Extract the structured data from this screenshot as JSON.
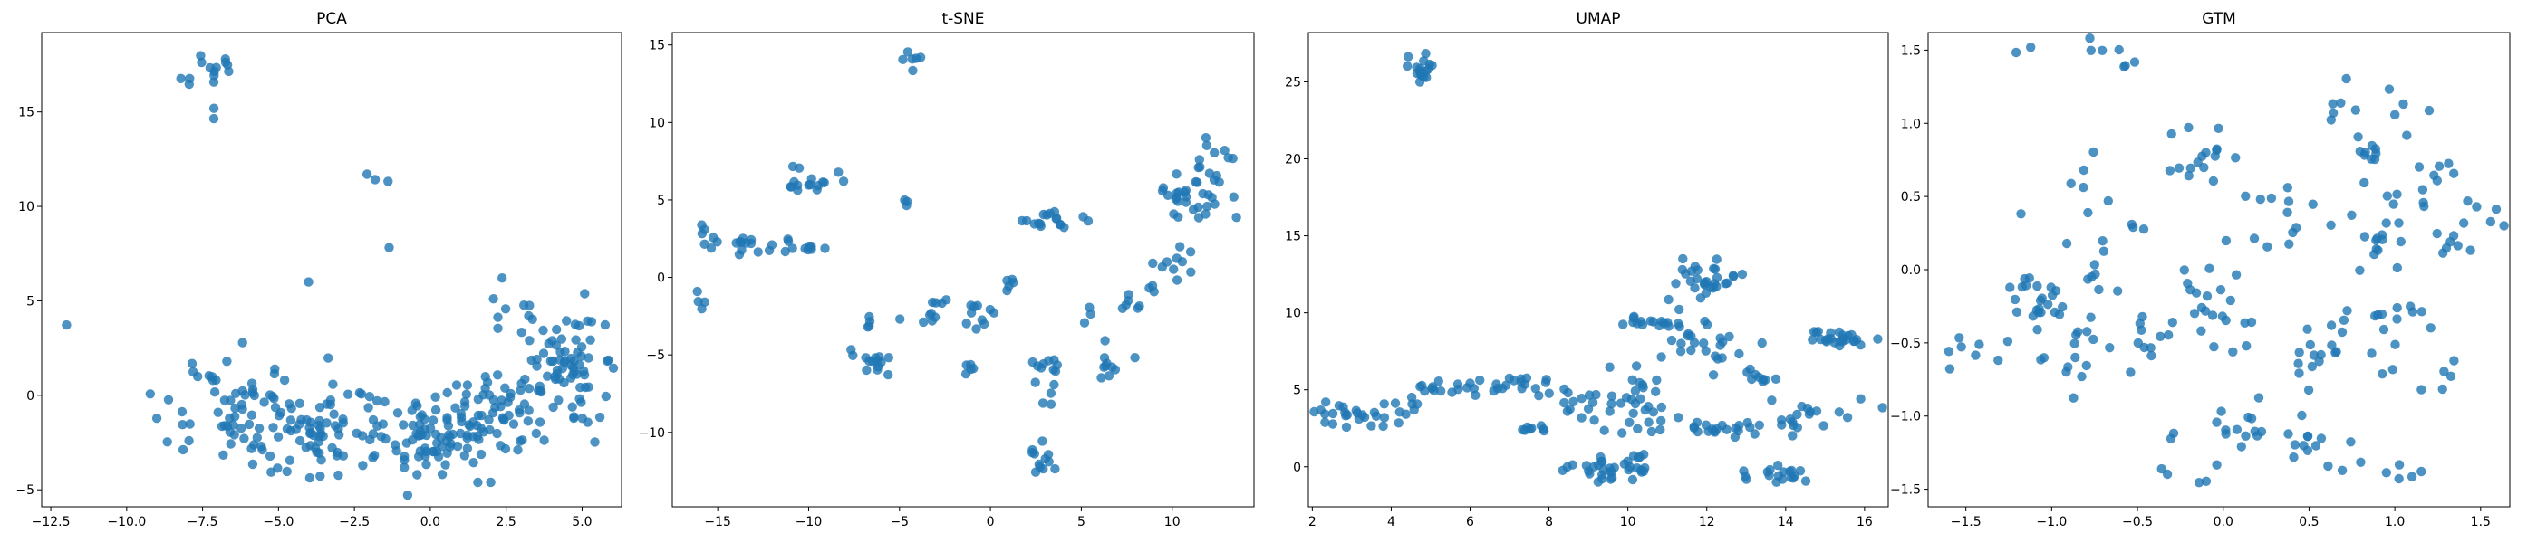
{
  "figure": {
    "point_color": "#1f77b4",
    "point_alpha": 0.8
  },
  "chart_data": [
    {
      "type": "scatter",
      "title": "PCA",
      "xlabel": "",
      "ylabel": "",
      "xlim": [
        -12.8,
        6.3
      ],
      "ylim": [
        -5.9,
        19.2
      ],
      "xticks": [
        -12.5,
        -10.0,
        -7.5,
        -5.0,
        -2.5,
        0.0,
        2.5,
        5.0
      ],
      "xtick_labels": [
        "−12.5",
        "−10.0",
        "−7.5",
        "−5.0",
        "−2.5",
        "0.0",
        "2.5",
        "5.0"
      ],
      "yticks": [
        -5,
        0,
        5,
        10,
        15
      ],
      "ytick_labels": [
        "−5",
        "0",
        "5",
        "10",
        "15"
      ],
      "clusters": [
        {
          "center": [
            -7.4,
            17.2
          ],
          "spread": [
            0.6,
            0.6
          ],
          "n": 14,
          "seed": 11
        },
        {
          "center": [
            -6.9,
            14.8
          ],
          "spread": [
            0.2,
            0.2
          ],
          "n": 2,
          "seed": 12
        },
        {
          "center": [
            -11.9,
            3.7
          ],
          "spread": [
            0.05,
            0.05
          ],
          "n": 1,
          "seed": 13
        },
        {
          "center": [
            -1.6,
            11.6
          ],
          "spread": [
            0.3,
            0.2
          ],
          "n": 3,
          "seed": 14
        },
        {
          "center": [
            -1.3,
            7.8
          ],
          "spread": [
            0.05,
            0.05
          ],
          "n": 1,
          "seed": 15
        },
        {
          "center": [
            -4.0,
            6.0
          ],
          "spread": [
            0.05,
            0.05
          ],
          "n": 1,
          "seed": 16
        },
        {
          "center": [
            -6.5,
            -1.2
          ],
          "spread": [
            1.2,
            1.5
          ],
          "n": 60,
          "seed": 17
        },
        {
          "center": [
            -4.5,
            -2.0
          ],
          "spread": [
            1.0,
            1.2
          ],
          "n": 40,
          "seed": 18
        },
        {
          "center": [
            -2.0,
            -1.6
          ],
          "spread": [
            1.3,
            1.1
          ],
          "n": 50,
          "seed": 19
        },
        {
          "center": [
            0.3,
            -2.4
          ],
          "spread": [
            0.8,
            1.2
          ],
          "n": 60,
          "seed": 20
        },
        {
          "center": [
            2.2,
            -1.2
          ],
          "spread": [
            1.0,
            1.0
          ],
          "n": 50,
          "seed": 21
        },
        {
          "center": [
            4.3,
            1.6
          ],
          "spread": [
            0.7,
            1.5
          ],
          "n": 80,
          "seed": 22
        },
        {
          "center": [
            3.0,
            4.6
          ],
          "spread": [
            0.7,
            1.0
          ],
          "n": 8,
          "seed": 23
        }
      ]
    },
    {
      "type": "scatter",
      "title": "t-SNE",
      "xlabel": "",
      "ylabel": "",
      "xlim": [
        -17.5,
        14.5
      ],
      "ylim": [
        -14.8,
        15.8
      ],
      "xticks": [
        -15,
        -10,
        -5,
        0,
        5,
        10
      ],
      "xtick_labels": [
        "−15",
        "−10",
        "−5",
        "0",
        "5",
        "10"
      ],
      "yticks": [
        -10,
        -5,
        0,
        5,
        10,
        15
      ],
      "ytick_labels": [
        "−10",
        "−5",
        "0",
        "5",
        "10",
        "15"
      ],
      "clusters": [
        {
          "center": [
            -4.4,
            13.9
          ],
          "spread": [
            0.4,
            0.3
          ],
          "n": 6,
          "seed": 31
        },
        {
          "center": [
            -15.8,
            3.0
          ],
          "spread": [
            0.1,
            0.2
          ],
          "n": 3,
          "seed": 32
        },
        {
          "center": [
            -13.5,
            2.0
          ],
          "spread": [
            1.2,
            0.3
          ],
          "n": 18,
          "seed": 33
        },
        {
          "center": [
            -10.0,
            6.2
          ],
          "spread": [
            0.8,
            0.5
          ],
          "n": 16,
          "seed": 34
        },
        {
          "center": [
            -10.0,
            2.0
          ],
          "spread": [
            0.7,
            0.5
          ],
          "n": 8,
          "seed": 35
        },
        {
          "center": [
            -15.8,
            -1.4
          ],
          "spread": [
            0.2,
            0.4
          ],
          "n": 4,
          "seed": 36
        },
        {
          "center": [
            -4.5,
            4.8
          ],
          "spread": [
            0.2,
            0.1
          ],
          "n": 3,
          "seed": 37
        },
        {
          "center": [
            -6.7,
            -5.5
          ],
          "spread": [
            0.6,
            0.6
          ],
          "n": 14,
          "seed": 38
        },
        {
          "center": [
            -6.8,
            -2.8
          ],
          "spread": [
            0.2,
            0.3
          ],
          "n": 4,
          "seed": 39
        },
        {
          "center": [
            -3.5,
            -2.5
          ],
          "spread": [
            0.6,
            0.8
          ],
          "n": 10,
          "seed": 40
        },
        {
          "center": [
            -0.8,
            -2.4
          ],
          "spread": [
            0.6,
            0.6
          ],
          "n": 10,
          "seed": 41
        },
        {
          "center": [
            -1.5,
            -6.0
          ],
          "spread": [
            0.3,
            0.4
          ],
          "n": 5,
          "seed": 42
        },
        {
          "center": [
            0.8,
            -0.5
          ],
          "spread": [
            0.3,
            0.6
          ],
          "n": 5,
          "seed": 43
        },
        {
          "center": [
            2.8,
            -12.0
          ],
          "spread": [
            0.6,
            0.6
          ],
          "n": 12,
          "seed": 44
        },
        {
          "center": [
            3.0,
            -6.2
          ],
          "spread": [
            0.5,
            1.2
          ],
          "n": 14,
          "seed": 45
        },
        {
          "center": [
            3.6,
            3.8
          ],
          "spread": [
            0.6,
            0.3
          ],
          "n": 14,
          "seed": 46
        },
        {
          "center": [
            5.5,
            -2.3
          ],
          "spread": [
            0.2,
            0.2
          ],
          "n": 3,
          "seed": 47
        },
        {
          "center": [
            6.8,
            -5.3
          ],
          "spread": [
            0.5,
            0.6
          ],
          "n": 10,
          "seed": 48
        },
        {
          "center": [
            8.3,
            -1.0
          ],
          "spread": [
            0.7,
            0.7
          ],
          "n": 10,
          "seed": 49
        },
        {
          "center": [
            10.5,
            5.0
          ],
          "spread": [
            0.8,
            1.4
          ],
          "n": 20,
          "seed": 50
        },
        {
          "center": [
            12.3,
            6.5
          ],
          "spread": [
            0.8,
            1.8
          ],
          "n": 22,
          "seed": 51
        },
        {
          "center": [
            10.2,
            1.0
          ],
          "spread": [
            0.5,
            0.6
          ],
          "n": 8,
          "seed": 52
        },
        {
          "center": [
            2.0,
            3.6
          ],
          "spread": [
            0.3,
            0.1
          ],
          "n": 3,
          "seed": 53
        }
      ]
    },
    {
      "type": "scatter",
      "title": "UMAP",
      "xlabel": "",
      "ylabel": "",
      "xlim": [
        1.9,
        16.6
      ],
      "ylim": [
        -2.6,
        28.2
      ],
      "xticks": [
        2,
        4,
        6,
        8,
        10,
        12,
        14,
        16
      ],
      "xtick_labels": [
        "2",
        "4",
        "6",
        "8",
        "10",
        "12",
        "14",
        "16"
      ],
      "yticks": [
        0,
        5,
        10,
        15,
        20,
        25
      ],
      "ytick_labels": [
        "0",
        "5",
        "10",
        "15",
        "20",
        "25"
      ],
      "clusters": [
        {
          "center": [
            4.7,
            25.9
          ],
          "spread": [
            0.2,
            0.5
          ],
          "n": 18,
          "seed": 61
        },
        {
          "center": [
            3.3,
            3.5
          ],
          "spread": [
            0.6,
            0.4
          ],
          "n": 30,
          "seed": 62
        },
        {
          "center": [
            4.6,
            4.8
          ],
          "spread": [
            0.4,
            0.4
          ],
          "n": 8,
          "seed": 63
        },
        {
          "center": [
            6.8,
            5.3
          ],
          "spread": [
            0.8,
            0.4
          ],
          "n": 25,
          "seed": 64
        },
        {
          "center": [
            7.5,
            2.4
          ],
          "spread": [
            0.4,
            0.2
          ],
          "n": 8,
          "seed": 65
        },
        {
          "center": [
            9.4,
            -0.3
          ],
          "spread": [
            0.6,
            0.4
          ],
          "n": 25,
          "seed": 66
        },
        {
          "center": [
            10.3,
            0.2
          ],
          "spread": [
            0.3,
            0.3
          ],
          "n": 10,
          "seed": 67
        },
        {
          "center": [
            9.6,
            4.0
          ],
          "spread": [
            0.5,
            0.8
          ],
          "n": 20,
          "seed": 68
        },
        {
          "center": [
            10.6,
            4.0
          ],
          "spread": [
            0.4,
            1.2
          ],
          "n": 20,
          "seed": 69
        },
        {
          "center": [
            10.7,
            9.4
          ],
          "spread": [
            0.5,
            0.3
          ],
          "n": 18,
          "seed": 70
        },
        {
          "center": [
            12.1,
            12.1
          ],
          "spread": [
            0.5,
            0.6
          ],
          "n": 30,
          "seed": 71
        },
        {
          "center": [
            11.8,
            7.8
          ],
          "spread": [
            0.7,
            0.6
          ],
          "n": 20,
          "seed": 72
        },
        {
          "center": [
            12.3,
            2.7
          ],
          "spread": [
            0.6,
            0.3
          ],
          "n": 20,
          "seed": 73
        },
        {
          "center": [
            13.1,
            6.0
          ],
          "spread": [
            0.4,
            0.3
          ],
          "n": 10,
          "seed": 74
        },
        {
          "center": [
            13.8,
            -0.4
          ],
          "spread": [
            0.5,
            0.3
          ],
          "n": 18,
          "seed": 75
        },
        {
          "center": [
            14.5,
            3.0
          ],
          "spread": [
            0.6,
            0.6
          ],
          "n": 20,
          "seed": 76
        },
        {
          "center": [
            15.3,
            8.4
          ],
          "spread": [
            0.5,
            0.3
          ],
          "n": 25,
          "seed": 77
        },
        {
          "center": [
            13.5,
            8.2
          ],
          "spread": [
            0.1,
            0.1
          ],
          "n": 1,
          "seed": 78
        },
        {
          "center": [
            8.2,
            4.8
          ],
          "spread": [
            0.3,
            0.5
          ],
          "n": 5,
          "seed": 79
        }
      ]
    },
    {
      "type": "scatter",
      "title": "GTM",
      "xlabel": "",
      "ylabel": "",
      "xlim": [
        -1.72,
        1.67
      ],
      "ylim": [
        -1.62,
        1.62
      ],
      "xticks": [
        -1.5,
        -1.0,
        -0.5,
        0.0,
        0.5,
        1.0,
        1.5
      ],
      "xtick_labels": [
        "−1.5",
        "−1.0",
        "−0.5",
        "0.0",
        "0.5",
        "1.0",
        "1.5"
      ],
      "yticks": [
        -1.5,
        -1.0,
        -0.5,
        0.0,
        0.5,
        1.0,
        1.5
      ],
      "ytick_labels": [
        "−1.5",
        "−1.0",
        "−0.5",
        "0.0",
        "0.5",
        "1.0",
        "1.5"
      ],
      "clusters": [
        {
          "center": [
            -1.15,
            1.5
          ],
          "spread": [
            0.05,
            0.02
          ],
          "n": 2,
          "seed": 81
        },
        {
          "center": [
            -0.75,
            1.5
          ],
          "spread": [
            0.06,
            0.03
          ],
          "n": 4,
          "seed": 82
        },
        {
          "center": [
            -0.55,
            1.42
          ],
          "spread": [
            0.06,
            0.03
          ],
          "n": 3,
          "seed": 83
        },
        {
          "center": [
            -1.1,
            -0.2
          ],
          "spread": [
            0.08,
            0.1
          ],
          "n": 20,
          "seed": 84
        },
        {
          "center": [
            -1.45,
            -0.6
          ],
          "spread": [
            0.12,
            0.1
          ],
          "n": 8,
          "seed": 85
        },
        {
          "center": [
            -0.9,
            -0.55
          ],
          "spread": [
            0.1,
            0.15
          ],
          "n": 18,
          "seed": 86
        },
        {
          "center": [
            -0.65,
            0.1
          ],
          "spread": [
            0.15,
            0.2
          ],
          "n": 12,
          "seed": 87
        },
        {
          "center": [
            -0.75,
            0.6
          ],
          "spread": [
            0.06,
            0.1
          ],
          "n": 6,
          "seed": 88
        },
        {
          "center": [
            -0.4,
            -0.5
          ],
          "spread": [
            0.08,
            0.12
          ],
          "n": 10,
          "seed": 89
        },
        {
          "center": [
            -0.15,
            0.8
          ],
          "spread": [
            0.1,
            0.1
          ],
          "n": 16,
          "seed": 90
        },
        {
          "center": [
            -0.1,
            -0.2
          ],
          "spread": [
            0.08,
            0.1
          ],
          "n": 12,
          "seed": 91
        },
        {
          "center": [
            0.1,
            -1.1
          ],
          "spread": [
            0.12,
            0.1
          ],
          "n": 14,
          "seed": 92
        },
        {
          "center": [
            0.05,
            -0.5
          ],
          "spread": [
            0.15,
            0.2
          ],
          "n": 10,
          "seed": 93
        },
        {
          "center": [
            0.3,
            0.3
          ],
          "spread": [
            0.15,
            0.15
          ],
          "n": 14,
          "seed": 94
        },
        {
          "center": [
            0.5,
            -0.6
          ],
          "spread": [
            0.12,
            0.15
          ],
          "n": 12,
          "seed": 95
        },
        {
          "center": [
            0.55,
            -1.2
          ],
          "spread": [
            0.12,
            0.12
          ],
          "n": 14,
          "seed": 96
        },
        {
          "center": [
            0.6,
            1.1
          ],
          "spread": [
            0.12,
            0.1
          ],
          "n": 8,
          "seed": 97
        },
        {
          "center": [
            0.85,
            0.8
          ],
          "spread": [
            0.05,
            0.05
          ],
          "n": 8,
          "seed": 98
        },
        {
          "center": [
            0.9,
            0.3
          ],
          "spread": [
            0.12,
            0.2
          ],
          "n": 16,
          "seed": 99
        },
        {
          "center": [
            0.8,
            -0.4
          ],
          "spread": [
            0.15,
            0.15
          ],
          "n": 10,
          "seed": 100
        },
        {
          "center": [
            1.05,
            -0.3
          ],
          "spread": [
            0.1,
            0.05
          ],
          "n": 8,
          "seed": 101
        },
        {
          "center": [
            1.15,
            0.55
          ],
          "spread": [
            0.1,
            0.12
          ],
          "n": 12,
          "seed": 102
        },
        {
          "center": [
            1.35,
            0.2
          ],
          "spread": [
            0.06,
            0.06
          ],
          "n": 8,
          "seed": 103
        },
        {
          "center": [
            1.1,
            1.05
          ],
          "spread": [
            0.08,
            0.05
          ],
          "n": 4,
          "seed": 104
        },
        {
          "center": [
            1.2,
            -0.7
          ],
          "spread": [
            0.15,
            0.15
          ],
          "n": 6,
          "seed": 105
        },
        {
          "center": [
            1.0,
            -1.38
          ],
          "spread": [
            0.08,
            0.03
          ],
          "n": 5,
          "seed": 106
        },
        {
          "center": [
            -0.3,
            -1.3
          ],
          "spread": [
            0.1,
            0.1
          ],
          "n": 6,
          "seed": 107
        },
        {
          "center": [
            -1.25,
            0.4
          ],
          "spread": [
            0.05,
            0.05
          ],
          "n": 1,
          "seed": 108
        },
        {
          "center": [
            1.55,
            0.45
          ],
          "spread": [
            0.05,
            0.1
          ],
          "n": 4,
          "seed": 109
        }
      ]
    }
  ]
}
